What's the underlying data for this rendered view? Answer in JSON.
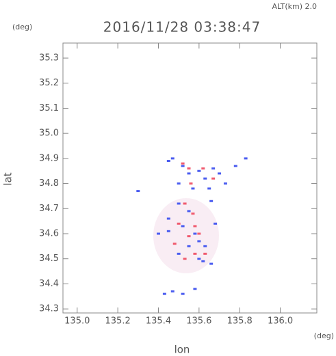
{
  "chart_data": {
    "type": "scatter",
    "title": "2016/11/28 03:38:47",
    "subtitle": "ALT(km) 2.0",
    "x_label": "lon",
    "y_label": "lat",
    "x_unit": "(deg)",
    "y_unit": "(deg)",
    "xlim": [
      134.93,
      136.18
    ],
    "ylim": [
      34.284,
      35.36
    ],
    "xticks": [
      {
        "value": 135.0,
        "label": "135.0"
      },
      135.2,
      135.4,
      135.6,
      135.8,
      {
        "value": 136.0,
        "label": "136.0"
      }
    ],
    "yticks": [
      35.3,
      35.2,
      35.1,
      {
        "value": 35.0,
        "label": "35.0"
      },
      34.9,
      34.8,
      34.7,
      34.6,
      34.5,
      34.4,
      34.3
    ],
    "series": [
      {
        "color": "#4a5cf0",
        "x": [
          135.45,
          135.47,
          135.52,
          135.55,
          135.6,
          135.63,
          135.67,
          135.7,
          135.73,
          135.78,
          135.83,
          135.5,
          135.57,
          135.65,
          135.3,
          135.5,
          135.55,
          135.45,
          135.52,
          135.58,
          135.6,
          135.63,
          135.55,
          135.6,
          135.66,
          135.62,
          135.5,
          135.43,
          135.47,
          135.52,
          135.58,
          135.45,
          135.68,
          135.66,
          135.4
        ],
        "y": [
          34.89,
          34.9,
          34.87,
          34.84,
          34.85,
          34.82,
          34.86,
          34.84,
          34.8,
          34.87,
          34.9,
          34.8,
          34.78,
          34.78,
          34.77,
          34.72,
          34.69,
          34.66,
          34.63,
          34.6,
          34.57,
          34.55,
          34.55,
          34.5,
          34.48,
          34.49,
          34.52,
          34.36,
          34.37,
          34.36,
          34.38,
          34.61,
          34.64,
          34.73,
          34.6
        ]
      },
      {
        "color": "#f05a6e",
        "x": [
          135.52,
          135.55,
          135.62,
          135.67,
          135.56,
          135.53,
          135.57,
          135.5,
          135.58,
          135.55,
          135.53,
          135.58,
          135.63,
          135.6,
          135.48
        ],
        "y": [
          34.88,
          34.86,
          34.86,
          34.82,
          34.8,
          34.72,
          34.68,
          34.64,
          34.63,
          34.59,
          34.5,
          34.52,
          34.52,
          34.6,
          34.56
        ]
      }
    ]
  }
}
